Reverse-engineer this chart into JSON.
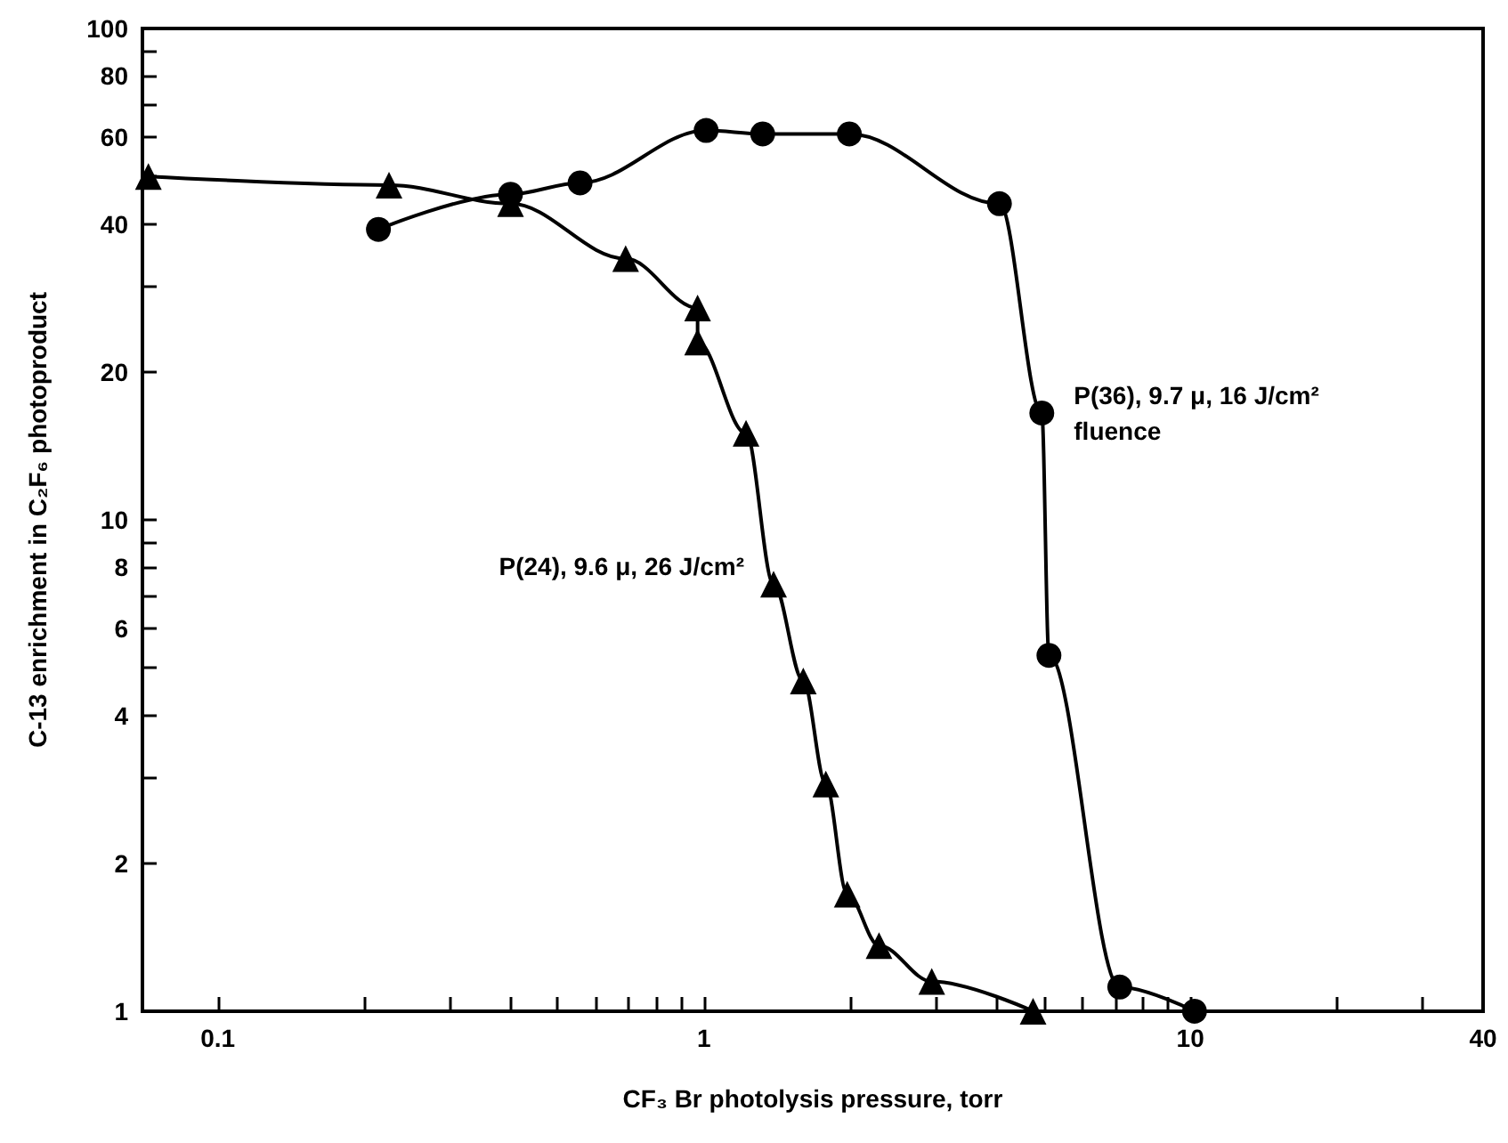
{
  "chart_data": {
    "type": "line",
    "xlabel": "CF₃ Br photolysis pressure, torr",
    "ylabel": "C-13 enrichment in C₂F₆ photoproduct",
    "log": "xy",
    "grid": false,
    "legend": false,
    "line_style": "solid",
    "xlim": [
      0.07,
      40
    ],
    "ylim": [
      1,
      100
    ],
    "xticks": [
      0.1,
      {
        "value": 0.2,
        "label": null
      },
      {
        "value": 0.3,
        "label": null
      },
      {
        "value": 0.4,
        "label": null
      },
      {
        "value": 0.5,
        "label": null
      },
      {
        "value": 0.6,
        "label": null
      },
      {
        "value": 0.7,
        "label": null
      },
      {
        "value": 0.8,
        "label": null
      },
      {
        "value": 0.9,
        "label": null
      },
      1,
      {
        "value": 2,
        "label": null
      },
      {
        "value": 3,
        "label": null
      },
      {
        "value": 4,
        "label": null
      },
      {
        "value": 5,
        "label": null
      },
      {
        "value": 6,
        "label": null
      },
      {
        "value": 7,
        "label": null
      },
      {
        "value": 8,
        "label": null
      },
      {
        "value": 9,
        "label": null
      },
      10,
      {
        "value": 20,
        "label": null
      },
      {
        "value": 30,
        "label": null
      },
      40
    ],
    "yticks": [
      1,
      2,
      {
        "value": 3,
        "label": null
      },
      4,
      {
        "value": 5,
        "label": null
      },
      6,
      {
        "value": 7,
        "label": null
      },
      8,
      {
        "value": 9,
        "label": null
      },
      10,
      20,
      {
        "value": 30,
        "label": null
      },
      40,
      {
        "value": 50,
        "label": null
      },
      60,
      {
        "value": 70,
        "label": null
      },
      80,
      {
        "value": 90,
        "label": null
      },
      100
    ],
    "series": [
      {
        "name": "P(24), 9.6 μ, 26 J/cm²",
        "color": "#000000",
        "marker": "triangle",
        "x": [
          0.072,
          0.225,
          0.4,
          0.69,
          0.97,
          0.97,
          1.22,
          1.39,
          1.6,
          1.78,
          1.97,
          2.29,
          2.94,
          4.75
        ],
        "values": [
          50,
          48,
          44,
          34,
          27,
          23,
          15,
          7.4,
          4.7,
          2.9,
          1.73,
          1.36,
          1.15,
          1.0
        ]
      },
      {
        "name": "P(36), 9.7 μ, 16 J/cm² fluence",
        "color": "#000000",
        "marker": "circle",
        "x": [
          0.214,
          0.4,
          0.556,
          1.01,
          1.32,
          1.99,
          4.05,
          4.95,
          5.12,
          7.16,
          10.2
        ],
        "values": [
          39,
          46,
          48.5,
          62,
          61,
          61,
          44,
          16.5,
          5.3,
          1.12,
          1.0
        ]
      }
    ]
  }
}
